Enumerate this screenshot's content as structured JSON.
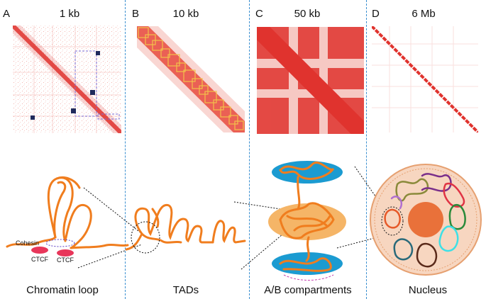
{
  "panels": [
    {
      "letter": "A",
      "resolution": "1 kb",
      "caption": "Chromatin loop"
    },
    {
      "letter": "B",
      "resolution": "10 kb",
      "caption": "TADs"
    },
    {
      "letter": "C",
      "resolution": "50 kb",
      "caption": "A/B compartments"
    },
    {
      "letter": "D",
      "resolution": "6 Mb",
      "caption": "Nucleus"
    }
  ],
  "labels": {
    "cohesin": "Cohesin",
    "ctcf_left": "CTCF",
    "ctcf_right": "CTCF"
  },
  "colors": {
    "heatmap_red": "#e0332e",
    "divider_blue": "#3a8fd0",
    "fiber_orange": "#f07d1e",
    "compartment_blue": "#1b9bd1",
    "tad_box_yellow": "#f2c14a",
    "loop_navy": "#1f2a5c",
    "ctcf_pink": "#e8365a"
  }
}
